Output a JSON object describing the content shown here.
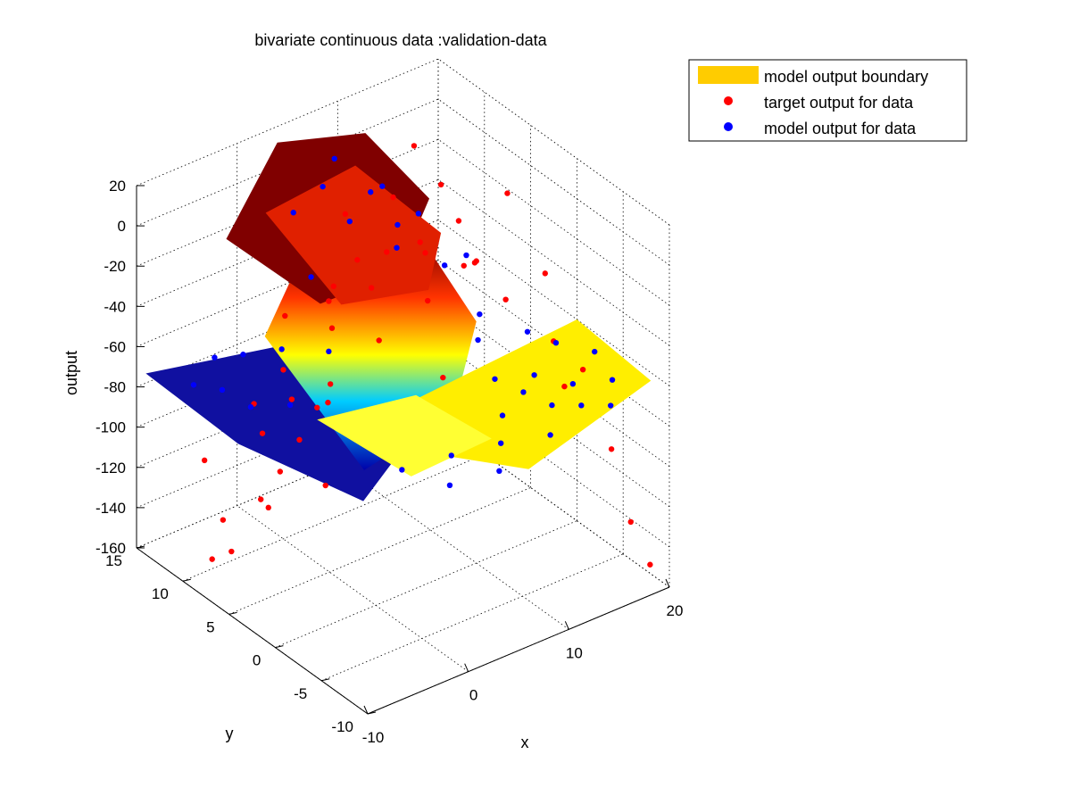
{
  "chart_data": {
    "type": "scatter",
    "title": "bivariate continuous data :validation-data",
    "xlabel": "x",
    "ylabel": "y",
    "zlabel": "output",
    "xlim": [
      -10,
      20
    ],
    "ylim": [
      -10,
      15
    ],
    "zlim": [
      -160,
      20
    ],
    "x_ticks": [
      "-10",
      "0",
      "10",
      "20"
    ],
    "y_ticks": [
      "-10",
      "-5",
      "0",
      "5",
      "10",
      "15"
    ],
    "z_ticks": [
      "20",
      "0",
      "-20",
      "-40",
      "-60",
      "-80",
      "-100",
      "-120",
      "-140",
      "-160"
    ],
    "grid": true,
    "legend_position": "top-right",
    "legend": [
      {
        "label": "model output boundary",
        "kind": "patch",
        "color": "#ffcc00"
      },
      {
        "label": "target output for data",
        "kind": "marker",
        "color": "#ff0000"
      },
      {
        "label": "model output for data",
        "kind": "marker",
        "color": "#0000ff"
      }
    ],
    "colors": {
      "target": "#ff0000",
      "model": "#0000ff",
      "boundary": "#ffcc00"
    },
    "series": [
      {
        "name": "target output for data",
        "points": [
          [
            -8,
            9,
            -150
          ],
          [
            -7,
            8,
            -145
          ],
          [
            -6,
            10,
            -138
          ],
          [
            -5,
            7,
            -120
          ],
          [
            -6,
            12,
            -115
          ],
          [
            -4,
            6,
            -105
          ],
          [
            -3,
            9,
            -98
          ],
          [
            -2,
            11,
            -92
          ],
          [
            -3,
            5,
            -88
          ],
          [
            -1,
            8,
            -82
          ],
          [
            0,
            10,
            -76
          ],
          [
            1,
            6,
            -72
          ],
          [
            -2,
            3,
            -65
          ],
          [
            2,
            12,
            -60
          ],
          [
            3,
            8,
            -55
          ],
          [
            4,
            4,
            -50
          ],
          [
            5,
            10,
            -45
          ],
          [
            6,
            7,
            -38
          ],
          [
            7,
            2,
            -30
          ],
          [
            8,
            12,
            -22
          ],
          [
            9,
            5,
            -15
          ],
          [
            10,
            9,
            -8
          ],
          [
            11,
            3,
            -2
          ],
          [
            12,
            6,
            4
          ],
          [
            13,
            10,
            8
          ],
          [
            14,
            1,
            12
          ],
          [
            15,
            -2,
            -20
          ],
          [
            16,
            -5,
            -60
          ],
          [
            17,
            -7,
            -95
          ],
          [
            18,
            -8,
            -130
          ],
          [
            19,
            -9,
            -150
          ],
          [
            16,
            -3,
            -75
          ],
          [
            14,
            -4,
            -45
          ],
          [
            12,
            -1,
            -30
          ],
          [
            10,
            0,
            -10
          ],
          [
            8,
            -2,
            0
          ],
          [
            6,
            -3,
            6
          ],
          [
            4,
            -1,
            10
          ],
          [
            2,
            1,
            8
          ],
          [
            0,
            2,
            5
          ],
          [
            -1,
            4,
            -20
          ],
          [
            -4,
            2,
            -60
          ],
          [
            -7,
            4,
            -110
          ],
          [
            -5,
            0,
            -90
          ],
          [
            3,
            -4,
            -40
          ]
        ]
      },
      {
        "name": "model output for data",
        "points": [
          [
            -8,
            11,
            -70
          ],
          [
            -7,
            9,
            -68
          ],
          [
            -6,
            7,
            -72
          ],
          [
            -5,
            12,
            -66
          ],
          [
            -4,
            10,
            -60
          ],
          [
            -3,
            6,
            -74
          ],
          [
            -2,
            8,
            -55
          ],
          [
            -1,
            4,
            -45
          ],
          [
            0,
            7,
            -20
          ],
          [
            1,
            10,
            0
          ],
          [
            2,
            5,
            10
          ],
          [
            3,
            9,
            12
          ],
          [
            4,
            2,
            14
          ],
          [
            5,
            6,
            15
          ],
          [
            6,
            11,
            13
          ],
          [
            7,
            3,
            10
          ],
          [
            8,
            8,
            5
          ],
          [
            9,
            0,
            -5
          ],
          [
            10,
            -2,
            -62
          ],
          [
            11,
            -4,
            -64
          ],
          [
            12,
            -6,
            -66
          ],
          [
            13,
            -3,
            -63
          ],
          [
            14,
            -7,
            -67
          ],
          [
            15,
            -5,
            -65
          ],
          [
            16,
            -8,
            -68
          ],
          [
            17,
            -1,
            -62
          ],
          [
            18,
            -6,
            -66
          ],
          [
            19,
            -3,
            -64
          ],
          [
            10,
            -8,
            -70
          ],
          [
            8,
            -5,
            -66
          ],
          [
            6,
            -7,
            -69
          ],
          [
            4,
            -9,
            -72
          ],
          [
            2,
            -6,
            -70
          ],
          [
            0,
            -8,
            -74
          ],
          [
            -2,
            -5,
            -72
          ],
          [
            12,
            2,
            -60
          ],
          [
            14,
            4,
            -58
          ],
          [
            16,
            1,
            -61
          ],
          [
            5,
            -2,
            5
          ],
          [
            3,
            1,
            8
          ]
        ]
      }
    ]
  }
}
